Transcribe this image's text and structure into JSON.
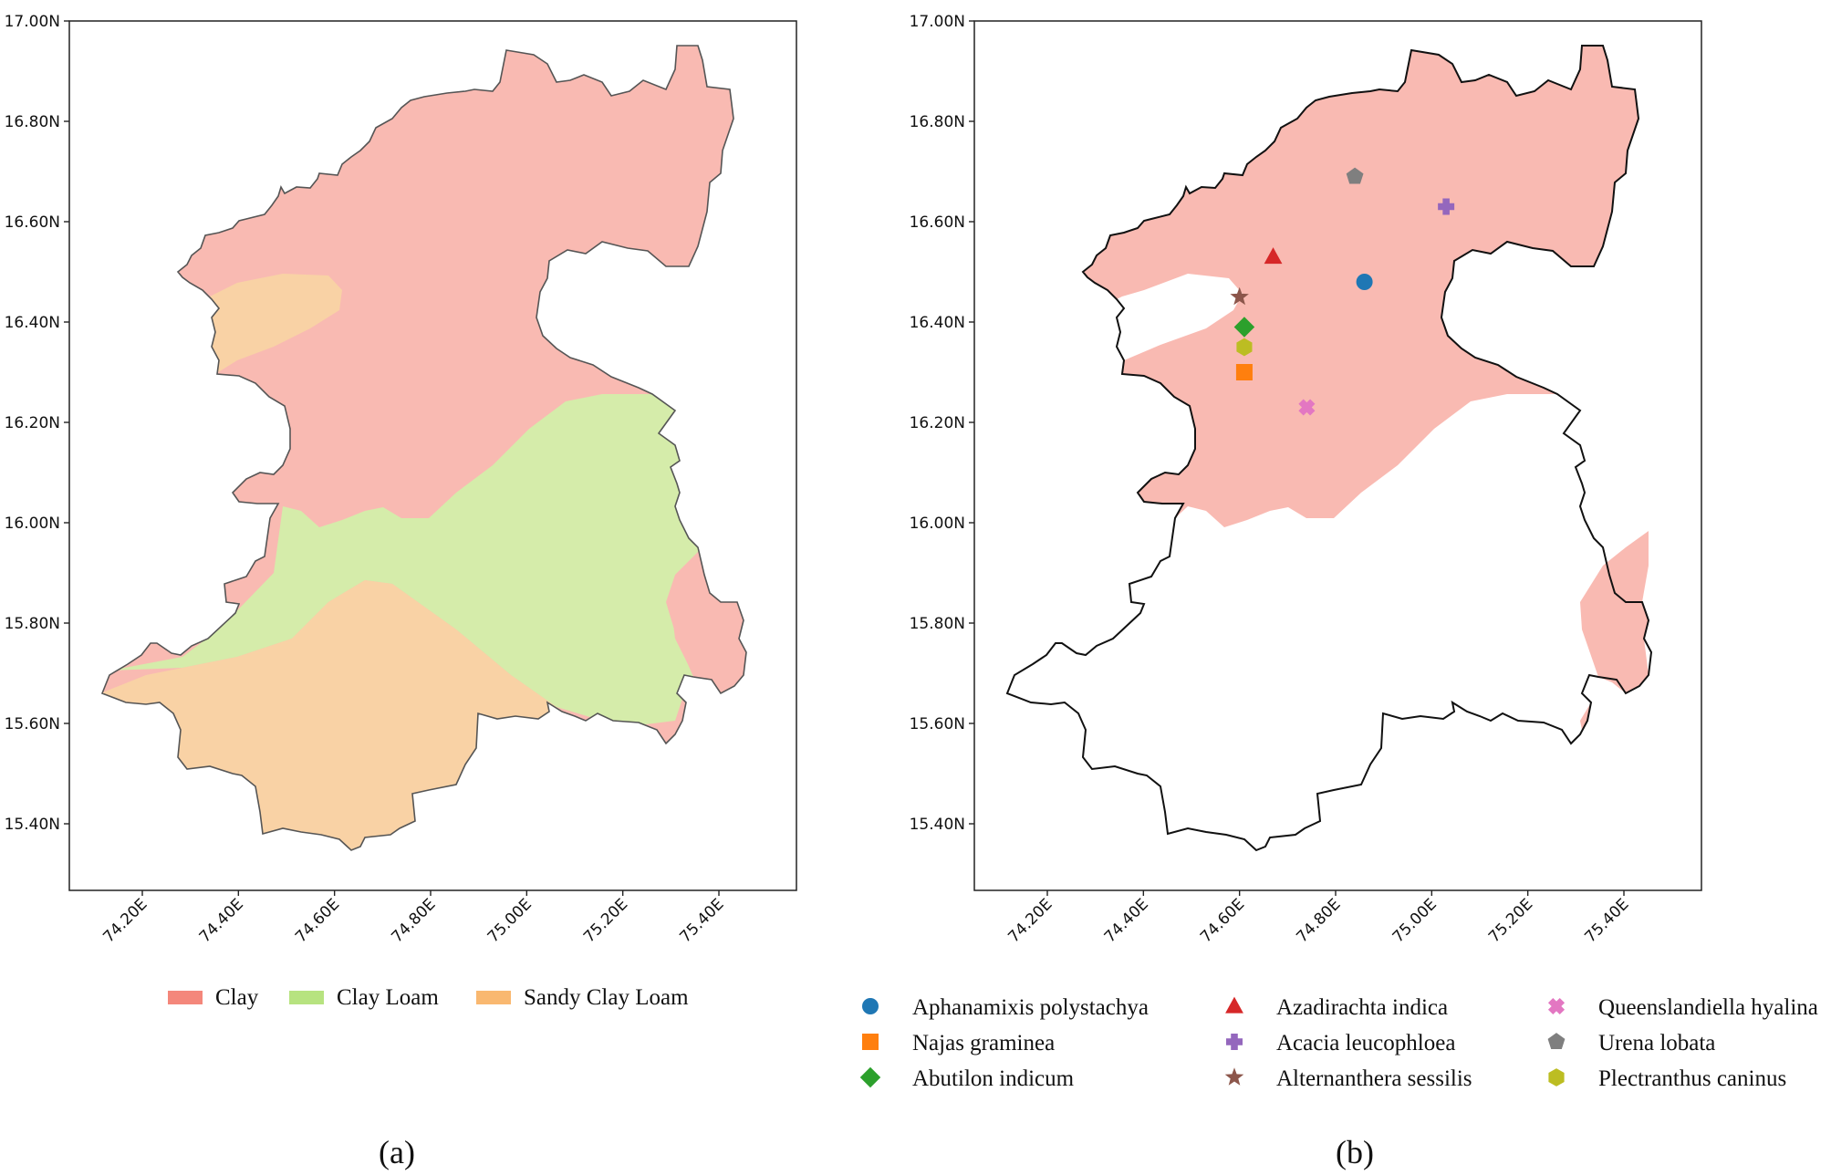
{
  "panels": [
    {
      "id": "a",
      "caption": "(a)",
      "y_ticks": [
        "17.00N",
        "16.80N",
        "16.60N",
        "16.40N",
        "16.20N",
        "16.00N",
        "15.80N",
        "15.60N",
        "15.40N"
      ],
      "x_ticks": [
        "74.20E",
        "74.40E",
        "74.60E",
        "74.80E",
        "75.00E",
        "75.20E",
        "75.40E"
      ],
      "legend": [
        {
          "label": "Clay",
          "color": "#f4877b"
        },
        {
          "label": "Clay Loam",
          "color": "#b7e380"
        },
        {
          "label": "Sandy Clay Loam",
          "color": "#f9b870"
        }
      ]
    },
    {
      "id": "b",
      "caption": "(b)",
      "y_ticks": [
        "17.00N",
        "16.80N",
        "16.60N",
        "16.40N",
        "16.20N",
        "16.00N",
        "15.80N",
        "15.60N",
        "15.40N"
      ],
      "x_ticks": [
        "74.20E",
        "74.40E",
        "74.60E",
        "74.80E",
        "75.00E",
        "75.20E",
        "75.40E"
      ],
      "legend": [
        {
          "label": "Aphanamixis polystachya",
          "color": "#1f77b4",
          "marker": "circle"
        },
        {
          "label": "Najas graminea",
          "color": "#ff7f0e",
          "marker": "square"
        },
        {
          "label": "Abutilon indicum",
          "color": "#2ca02c",
          "marker": "diamond"
        },
        {
          "label": "Azadirachta indica",
          "color": "#d62728",
          "marker": "triangle"
        },
        {
          "label": "Acacia leucophloea",
          "color": "#9467bd",
          "marker": "plus"
        },
        {
          "label": "Alternanthera sessilis",
          "color": "#8c564b",
          "marker": "star"
        },
        {
          "label": "Queenslandiella hyalina",
          "color": "#e377c2",
          "marker": "x"
        },
        {
          "label": "Urena lobata",
          "color": "#7f7f7f",
          "marker": "pentagon"
        },
        {
          "label": "Plectranthus caninus",
          "color": "#bcbd22",
          "marker": "hexagon"
        }
      ],
      "points": [
        {
          "species": "Aphanamixis polystachya",
          "lon": 74.86,
          "lat": 16.48
        },
        {
          "species": "Najas graminea",
          "lon": 74.61,
          "lat": 16.3
        },
        {
          "species": "Abutilon indicum",
          "lon": 74.61,
          "lat": 16.39
        },
        {
          "species": "Azadirachta indica",
          "lon": 74.67,
          "lat": 16.53
        },
        {
          "species": "Acacia leucophloea",
          "lon": 75.03,
          "lat": 16.63
        },
        {
          "species": "Alternanthera sessilis",
          "lon": 74.6,
          "lat": 16.45
        },
        {
          "species": "Queenslandiella hyalina",
          "lon": 74.74,
          "lat": 16.23
        },
        {
          "species": "Urena lobata",
          "lon": 74.84,
          "lat": 16.69
        },
        {
          "species": "Plectranthus caninus",
          "lon": 74.61,
          "lat": 16.35
        }
      ]
    }
  ],
  "soil_colors": {
    "clay": "#f9bab2",
    "clay_loam": "#d5ecaa",
    "sandy_clay_loam": "#f9d2a5"
  }
}
